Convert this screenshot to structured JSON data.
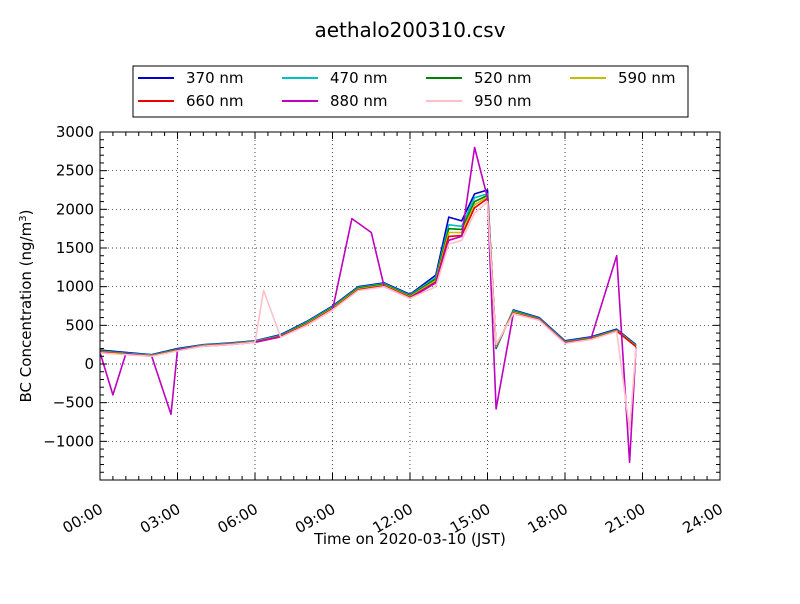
{
  "chart_data": {
    "type": "line",
    "title": "aethalo200310.csv",
    "xlabel": "Time on 2020-03-10 (JST)",
    "ylabel": "BC Concentration (ng/m3)",
    "ylabel_parts": {
      "main": "BC Concentration (ng/m",
      "sup": "3",
      "close": ")"
    },
    "xlim": [
      "00:00",
      "24:00"
    ],
    "ylim": [
      -1500,
      3000
    ],
    "x_ticks": [
      "00:00",
      "03:00",
      "06:00",
      "09:00",
      "12:00",
      "15:00",
      "18:00",
      "21:00",
      "24:00"
    ],
    "y_ticks": [
      "−1000",
      "−500",
      "0",
      "500",
      "1000",
      "1500",
      "2000",
      "2500",
      "3000"
    ],
    "grid": true,
    "legend_position": "top",
    "series": [
      {
        "name": "370 nm",
        "color": "#0000cc",
        "x": [
          "00:00",
          "01:00",
          "02:00",
          "03:00",
          "04:00",
          "05:00",
          "06:00",
          "07:00",
          "08:00",
          "09:00",
          "10:00",
          "11:00",
          "12:00",
          "13:00",
          "13:30",
          "14:00",
          "14:30",
          "15:00",
          "15:20",
          "16:00",
          "17:00",
          "18:00",
          "19:00",
          "20:00",
          "20:45"
        ],
        "values": [
          180,
          150,
          120,
          200,
          250,
          270,
          300,
          380,
          550,
          750,
          1000,
          1050,
          900,
          1150,
          1900,
          1850,
          2200,
          2250,
          200,
          700,
          600,
          300,
          350,
          450,
          250
        ]
      },
      {
        "name": "470 nm",
        "color": "#00bfbf",
        "x": [
          "00:00",
          "01:00",
          "02:00",
          "03:00",
          "04:00",
          "05:00",
          "06:00",
          "07:00",
          "08:00",
          "09:00",
          "10:00",
          "11:00",
          "12:00",
          "13:00",
          "13:30",
          "14:00",
          "14:30",
          "15:00",
          "15:20",
          "16:00",
          "17:00",
          "18:00",
          "19:00",
          "20:00",
          "20:45"
        ],
        "values": [
          170,
          140,
          115,
          190,
          245,
          265,
          295,
          370,
          540,
          740,
          990,
          1040,
          890,
          1120,
          1800,
          1780,
          2150,
          2200,
          210,
          690,
          590,
          290,
          340,
          440,
          240
        ]
      },
      {
        "name": "520 nm",
        "color": "#008000",
        "x": [
          "00:00",
          "01:00",
          "02:00",
          "03:00",
          "04:00",
          "05:00",
          "06:00",
          "07:00",
          "08:00",
          "09:00",
          "10:00",
          "11:00",
          "12:00",
          "13:00",
          "13:30",
          "14:00",
          "14:30",
          "15:00",
          "15:20",
          "16:00",
          "17:00",
          "18:00",
          "19:00",
          "20:00",
          "20:45"
        ],
        "values": [
          165,
          135,
          110,
          185,
          240,
          260,
          290,
          365,
          530,
          730,
          980,
          1030,
          880,
          1100,
          1750,
          1740,
          2100,
          2180,
          220,
          680,
          585,
          285,
          335,
          435,
          235
        ]
      },
      {
        "name": "590 nm",
        "color": "#bfbf00",
        "x": [
          "00:00",
          "01:00",
          "02:00",
          "03:00",
          "04:00",
          "05:00",
          "06:00",
          "07:00",
          "08:00",
          "09:00",
          "10:00",
          "11:00",
          "12:00",
          "13:00",
          "13:30",
          "14:00",
          "14:30",
          "15:00",
          "15:20",
          "16:00",
          "17:00",
          "18:00",
          "19:00",
          "20:00",
          "20:45"
        ],
        "values": [
          160,
          130,
          108,
          180,
          238,
          258,
          288,
          360,
          520,
          720,
          970,
          1020,
          870,
          1080,
          1700,
          1700,
          2060,
          2160,
          230,
          670,
          580,
          280,
          330,
          430,
          230
        ]
      },
      {
        "name": "660 nm",
        "color": "#ee0000",
        "x": [
          "00:00",
          "01:00",
          "02:00",
          "03:00",
          "04:00",
          "05:00",
          "06:00",
          "07:00",
          "08:00",
          "09:00",
          "10:00",
          "11:00",
          "12:00",
          "13:00",
          "13:30",
          "14:00",
          "14:30",
          "15:00",
          "15:20",
          "16:00",
          "17:00",
          "18:00",
          "19:00",
          "20:00",
          "20:45"
        ],
        "values": [
          155,
          125,
          105,
          175,
          235,
          255,
          285,
          355,
          510,
          710,
          960,
          1010,
          860,
          1060,
          1650,
          1660,
          2020,
          2140,
          240,
          660,
          575,
          275,
          325,
          425,
          225
        ]
      },
      {
        "name": "880 nm",
        "color": "#bf00bf",
        "x": [
          "00:00",
          "00:30",
          "01:00",
          "02:00",
          "02:45",
          "03:00",
          "04:00",
          "05:00",
          "06:00",
          "07:00",
          "08:00",
          "09:00",
          "09:45",
          "10:30",
          "11:00",
          "12:00",
          "13:00",
          "13:30",
          "14:00",
          "14:30",
          "15:00",
          "15:20",
          "16:00",
          "17:00",
          "18:00",
          "19:00",
          "20:00",
          "20:30",
          "20:45"
        ],
        "values": [
          150,
          -400,
          130,
          100,
          -650,
          180,
          230,
          250,
          280,
          350,
          500,
          700,
          1880,
          1700,
          1000,
          850,
          1050,
          1600,
          1650,
          2800,
          2150,
          -580,
          650,
          570,
          270,
          320,
          1400,
          -1270,
          220
        ]
      },
      {
        "name": "950 nm",
        "color": "#ffc0cb",
        "x": [
          "00:00",
          "01:00",
          "02:00",
          "03:00",
          "04:00",
          "05:00",
          "06:00",
          "06:20",
          "07:00",
          "08:00",
          "09:00",
          "10:00",
          "11:00",
          "12:00",
          "13:00",
          "13:30",
          "14:00",
          "14:30",
          "15:00",
          "15:20",
          "16:00",
          "17:00",
          "18:00",
          "19:00",
          "20:00",
          "20:30",
          "20:45"
        ],
        "values": [
          145,
          120,
          100,
          170,
          230,
          250,
          280,
          950,
          345,
          500,
          700,
          950,
          1000,
          850,
          1000,
          1550,
          1600,
          1950,
          2100,
          250,
          650,
          565,
          265,
          315,
          420,
          -850,
          215
        ]
      }
    ]
  }
}
